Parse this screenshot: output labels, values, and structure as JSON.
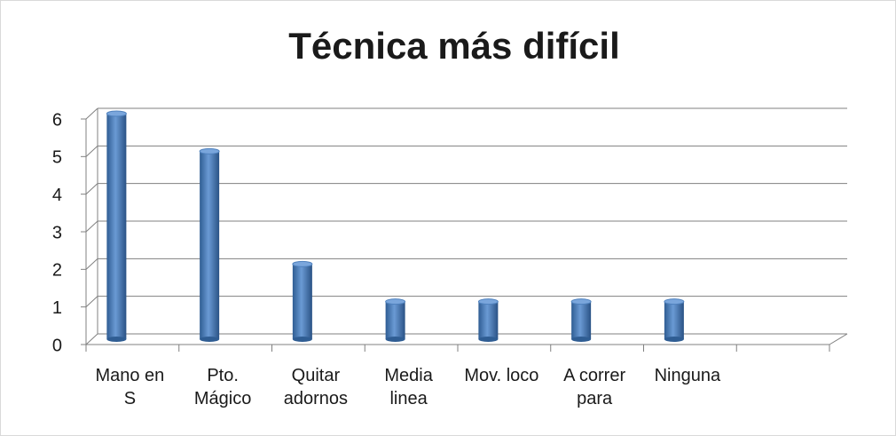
{
  "chart_data": {
    "type": "bar",
    "title": "Técnica más difícil",
    "categories": [
      "Mano en S",
      "Pto. Mágico",
      "Quitar adornos",
      "Media linea",
      "Mov. loco",
      "A correr para",
      "Ninguna",
      null
    ],
    "values": [
      6,
      5,
      2,
      1,
      1,
      1,
      1,
      null
    ],
    "color": "#4f81bd",
    "ylim": [
      0,
      6
    ],
    "yticks": [
      0,
      1,
      2,
      3,
      4,
      5,
      6
    ],
    "grid": true
  }
}
